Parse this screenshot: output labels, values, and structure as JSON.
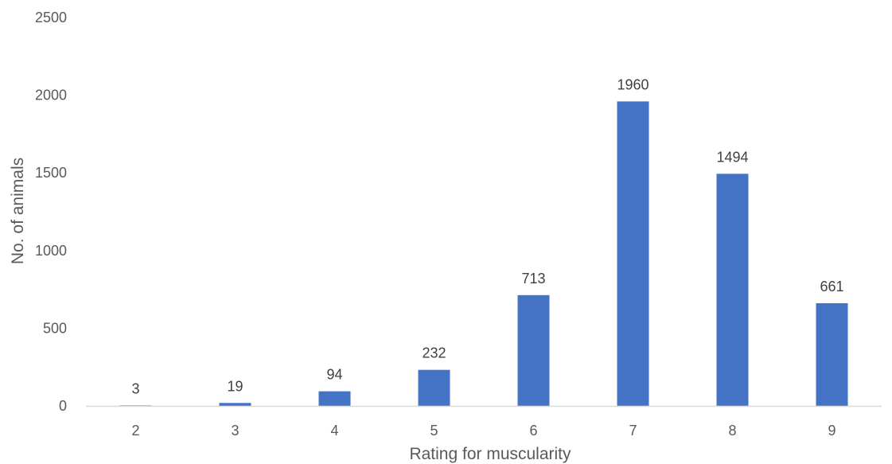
{
  "chart_data": {
    "type": "bar",
    "categories": [
      "2",
      "3",
      "4",
      "5",
      "6",
      "7",
      "8",
      "9"
    ],
    "values": [
      3,
      19,
      94,
      232,
      713,
      1960,
      1494,
      661
    ],
    "data_labels": [
      "3",
      "19",
      "94",
      "232",
      "713",
      "1960",
      "1494",
      "661"
    ],
    "xlabel": "Rating for muscularity",
    "ylabel": "No. of animals",
    "ylim": [
      0,
      2500
    ],
    "yticks": [
      0,
      500,
      1000,
      1500,
      2000,
      2500
    ],
    "ytick_labels": [
      "0",
      "500",
      "1000",
      "1500",
      "2000",
      "2500"
    ],
    "grid": false,
    "legend": "none",
    "colors": {
      "bar": "#4472C4",
      "axis": "#D9D9D9",
      "text": "#595959"
    }
  }
}
